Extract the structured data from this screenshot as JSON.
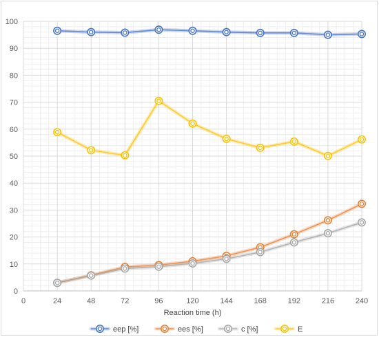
{
  "chart_data": {
    "type": "line",
    "title": "",
    "xlabel": "Reaction time (h)",
    "ylabel": "",
    "x": [
      24,
      48,
      72,
      96,
      120,
      144,
      168,
      192,
      216,
      240
    ],
    "x_ticks": [
      0,
      24,
      48,
      72,
      96,
      120,
      144,
      168,
      192,
      216,
      240
    ],
    "y_ticks": [
      0,
      10,
      20,
      30,
      40,
      50,
      60,
      70,
      80,
      90,
      100
    ],
    "xlim": [
      0,
      240
    ],
    "ylim": [
      0,
      100
    ],
    "grid": true,
    "minor_grid": true,
    "legend_position": "bottom",
    "series": [
      {
        "name": "eep [%]",
        "color": "#4472c4",
        "values": [
          96.5,
          96.0,
          95.8,
          96.9,
          96.5,
          96.0,
          95.7,
          95.7,
          95.0,
          95.3
        ]
      },
      {
        "name": "ees [%]",
        "color": "#ed7d31",
        "values": [
          3.0,
          5.8,
          8.9,
          9.6,
          11.0,
          13.0,
          16.2,
          21.0,
          26.2,
          32.3
        ]
      },
      {
        "name": "c [%]",
        "color": "#a5a5a5",
        "values": [
          3.0,
          5.7,
          8.3,
          9.0,
          10.2,
          11.9,
          14.4,
          18.0,
          21.4,
          25.4
        ]
      },
      {
        "name": "E",
        "color": "#ffc000",
        "values": [
          58.9,
          52.2,
          50.3,
          70.5,
          62.1,
          56.4,
          53.1,
          55.4,
          50.1,
          56.2
        ]
      }
    ]
  }
}
